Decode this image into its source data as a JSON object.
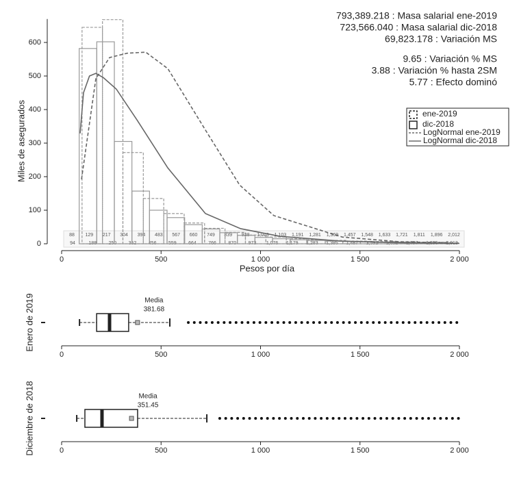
{
  "chart_data": [
    {
      "type": "histogram",
      "ylabel": "Miles de asegurados",
      "xlabel": "Pesos por día",
      "xlim": [
        0,
        2000
      ],
      "ylim": [
        0,
        680
      ],
      "xticks": [
        0,
        500,
        {
          "value": 1000,
          "label": "1 000"
        },
        {
          "value": 1500,
          "label": "1 500"
        },
        {
          "value": 2000,
          "label": "2 000"
        }
      ],
      "yticks": [
        0,
        100,
        200,
        300,
        400,
        500,
        600
      ],
      "stats": [
        "793,389.218 : Masa salarial ene-2019",
        "723,566.040 : Masa salarial dic-2018",
        "69,823.178 : Variación MS",
        "9.65 : Variación % MS",
        "3.88 : Variación % hasta 2SM",
        "5.77 : Efecto dominó"
      ],
      "series": [
        {
          "name": "ene-2019",
          "color": "#999999",
          "dashed": true,
          "bins": [
            102.68,
            205.36,
            308.04,
            410.72,
            513.4,
            616.08,
            718.76,
            821.44,
            924.12,
            1026.8,
            1129.48,
            1232.16,
            1334.84,
            1437.52,
            1540.2,
            1642.88,
            1745.56,
            1848.24,
            1950.92
          ],
          "values": [
            645,
            668,
            272,
            135,
            90,
            62,
            46,
            34,
            26,
            20,
            15,
            12,
            10,
            8,
            7,
            6,
            5,
            5
          ]
        },
        {
          "name": "dic-2018",
          "color": "#999999",
          "dashed": false,
          "bins": [
            88.36,
            176.72,
            265.08,
            353.44,
            441.8,
            530.16,
            618.52,
            706.88,
            795.24,
            883.6,
            971.96,
            1060.32,
            1148.68,
            1237.04,
            1325.4,
            1413.76,
            1502.12,
            1590.48,
            1678.84,
            1767.2,
            1855.56,
            1943.92
          ],
          "values": [
            582,
            602,
            305,
            157,
            100,
            78,
            57,
            44,
            33,
            25,
            19,
            15,
            12,
            10,
            8,
            7,
            6,
            5,
            5,
            4,
            4
          ]
        }
      ],
      "curves": [
        {
          "name": "LogNormal ene-2019",
          "color": "#666666",
          "dashed": true,
          "x": [
            100,
            172,
            241,
            330,
            423,
            534,
            723,
            895,
            1067,
            1411,
            1700,
            2000
          ],
          "values": [
            192,
            492,
            555,
            568,
            571,
            522,
            339,
            175,
            84,
            20,
            6,
            2
          ]
        },
        {
          "name": "LogNormal dic-2018",
          "color": "#666666",
          "dashed": false,
          "x": [
            93,
            110,
            140,
            172,
            210,
            275,
            379,
            534,
            723,
            900,
            1100,
            1400,
            1700,
            2000
          ],
          "values": [
            329,
            450,
            500,
            508,
            495,
            461,
            369,
            226,
            90,
            45,
            22,
            8,
            3,
            1
          ]
        }
      ],
      "bin_label_rows": [
        [
          "88",
          "129",
          "217",
          "304",
          "394",
          "483",
          "567",
          "660",
          "749",
          "839",
          "928",
          "1,018",
          "1,103",
          "1,191",
          "1,281",
          "1,369",
          "1,457",
          "1,548",
          "1,633",
          "1,721",
          "1,811",
          "1,896",
          "2,012"
        ],
        [
          "94",
          "188",
          "250",
          "352",
          "456",
          "559",
          "664",
          "766",
          "870",
          "973",
          "1,076",
          "1,179",
          "1,283",
          "1,385",
          "1,487",
          "1,591",
          "1,692",
          "1,797",
          "1,895",
          "2,013"
        ]
      ]
    },
    {
      "type": "box",
      "ylabel": "Enero de 2019",
      "xlim": [
        0,
        2000
      ],
      "xticks": [
        0,
        500,
        {
          "value": 1000,
          "label": "1 000"
        },
        {
          "value": 1500,
          "label": "1 500"
        },
        {
          "value": 2000,
          "label": "2 000"
        }
      ],
      "whislo": 90,
      "q1": 176,
      "med": 241,
      "q3": 337,
      "whishi": 544,
      "mean": 381.68,
      "mean_label": "Media",
      "outliers": [
        637,
        667,
        697,
        727,
        757,
        787,
        817,
        847,
        877,
        907,
        937,
        967,
        997,
        1027,
        1057,
        1087,
        1117,
        1147,
        1177,
        1207,
        1237,
        1267,
        1297,
        1327,
        1357,
        1387,
        1417,
        1447,
        1477,
        1507,
        1537,
        1567,
        1597,
        1627,
        1657,
        1687,
        1717,
        1747,
        1777,
        1807,
        1837,
        1867,
        1897,
        1927,
        1957,
        1987
      ]
    },
    {
      "type": "box",
      "ylabel": "Diciembre de 2018",
      "xlim": [
        0,
        2000
      ],
      "xticks": [
        0,
        500,
        {
          "value": 1000,
          "label": "1 000"
        },
        {
          "value": 1500,
          "label": "1 500"
        },
        {
          "value": 2000,
          "label": "2 000"
        }
      ],
      "whislo": 76,
      "q1": 117,
      "med": 203,
      "q3": 382,
      "whishi": 730,
      "mean": 351.45,
      "mean_label": "Media",
      "outliers": [
        795,
        825,
        855,
        885,
        915,
        945,
        975,
        1005,
        1035,
        1065,
        1095,
        1125,
        1155,
        1185,
        1215,
        1245,
        1275,
        1305,
        1335,
        1365,
        1395,
        1425,
        1455,
        1485,
        1515,
        1545,
        1575,
        1605,
        1635,
        1665,
        1695,
        1725,
        1755,
        1785,
        1815,
        1845,
        1875,
        1905,
        1935,
        1965,
        1995
      ]
    }
  ]
}
